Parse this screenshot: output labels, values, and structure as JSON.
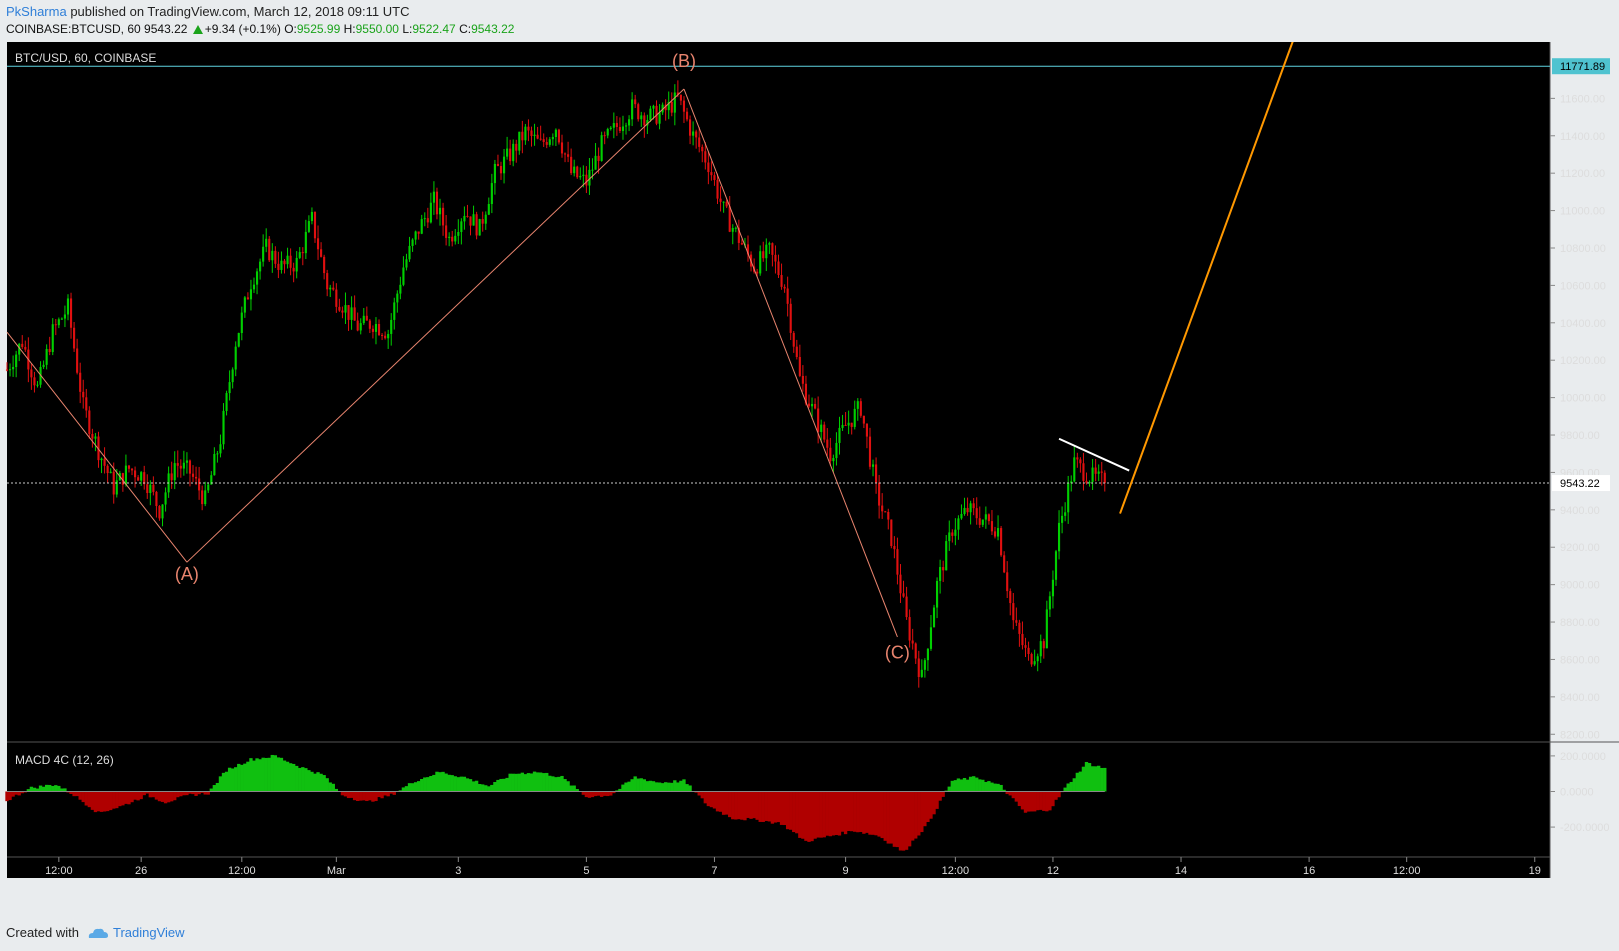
{
  "header": {
    "author": "PkSharma",
    "published_text": " published on TradingView.com, March 12, 2018 09:11 UTC",
    "symbol": "COINBASE:BTCUSD, 60",
    "last": "9543.22",
    "change": "+9.34 (+0.1%)",
    "open_label": "O:",
    "open": "9525.99",
    "high_label": "H:",
    "high": "9550.00",
    "low_label": "L:",
    "low": "9522.47",
    "close_label": "C:",
    "close": "9543.22"
  },
  "footer": {
    "created_with": "Created with",
    "brand": "TradingView"
  },
  "colors": {
    "up": "#00d000",
    "down": "#e01010",
    "macd_up": "#10c010",
    "macd_down": "#b00000",
    "wave": "#e8846e",
    "target": "#ff9800",
    "trend": "#ffffff",
    "hline": "#5fd3e0",
    "bg": "#000000"
  },
  "chart_data": {
    "type": "candlestick",
    "title": "BTC/USD, 60, COINBASE",
    "y_ticks": [
      "11600.00",
      "11400.00",
      "11200.00",
      "11000.00",
      "10800.00",
      "10600.00",
      "10400.00",
      "10200.00",
      "10000.00",
      "9800.00",
      "9600.00",
      "9400.00",
      "9200.00",
      "9000.00",
      "8800.00",
      "8600.00",
      "8400.00",
      "8200.00"
    ],
    "ylim": [
      8180,
      11880
    ],
    "current_price_label": "9543.22",
    "hline_price_label": "11771.89",
    "x_ticks": [
      "12:00",
      "26",
      "12:00",
      "Mar",
      "3",
      "5",
      "7",
      "9",
      "12:00",
      "12",
      "14",
      "16",
      "12:00",
      "19"
    ],
    "x_tick_bars": [
      17,
      44,
      77,
      108,
      148,
      190,
      232,
      275,
      311,
      343,
      385,
      427,
      459,
      501
    ],
    "bars_in_view": 506,
    "close_path": [
      [
        0,
        10150
      ],
      [
        5,
        10300
      ],
      [
        10,
        10050
      ],
      [
        15,
        10350
      ],
      [
        20,
        10480
      ],
      [
        25,
        9950
      ],
      [
        30,
        9720
      ],
      [
        35,
        9520
      ],
      [
        40,
        9620
      ],
      [
        45,
        9580
      ],
      [
        50,
        9400
      ],
      [
        55,
        9650
      ],
      [
        60,
        9600
      ],
      [
        65,
        9450
      ],
      [
        70,
        9780
      ],
      [
        75,
        10300
      ],
      [
        80,
        10620
      ],
      [
        85,
        10800
      ],
      [
        90,
        10700
      ],
      [
        95,
        10720
      ],
      [
        100,
        10950
      ],
      [
        105,
        10600
      ],
      [
        110,
        10500
      ],
      [
        115,
        10380
      ],
      [
        120,
        10400
      ],
      [
        125,
        10350
      ],
      [
        130,
        10700
      ],
      [
        135,
        10900
      ],
      [
        140,
        11050
      ],
      [
        145,
        10850
      ],
      [
        150,
        11000
      ],
      [
        155,
        10900
      ],
      [
        160,
        11200
      ],
      [
        165,
        11300
      ],
      [
        170,
        11420
      ],
      [
        175,
        11350
      ],
      [
        180,
        11450
      ],
      [
        185,
        11200
      ],
      [
        190,
        11150
      ],
      [
        195,
        11350
      ],
      [
        200,
        11450
      ],
      [
        205,
        11550
      ],
      [
        210,
        11500
      ],
      [
        215,
        11520
      ],
      [
        220,
        11600
      ],
      [
        225,
        11400
      ],
      [
        230,
        11250
      ],
      [
        235,
        11000
      ],
      [
        240,
        10850
      ],
      [
        245,
        10700
      ],
      [
        250,
        10780
      ],
      [
        255,
        10600
      ],
      [
        260,
        10100
      ],
      [
        265,
        9900
      ],
      [
        270,
        9700
      ],
      [
        275,
        9850
      ],
      [
        280,
        9950
      ],
      [
        285,
        9500
      ],
      [
        290,
        9250
      ],
      [
        295,
        8800
      ],
      [
        300,
        8500
      ],
      [
        305,
        9000
      ],
      [
        310,
        9300
      ],
      [
        315,
        9400
      ],
      [
        320,
        9350
      ],
      [
        325,
        9300
      ],
      [
        330,
        8800
      ],
      [
        335,
        8600
      ],
      [
        340,
        8700
      ],
      [
        345,
        9300
      ],
      [
        350,
        9650
      ],
      [
        355,
        9580
      ],
      [
        360,
        9543.22
      ]
    ],
    "wave_labels": [
      {
        "label": "(A)",
        "bar": 59,
        "price": 9120
      },
      {
        "label": "(B)",
        "bar": 222,
        "price": 11650
      },
      {
        "label": "(C)",
        "bar": 292,
        "price": 8700
      }
    ],
    "wave_lines": [
      [
        [
          0,
          10350
        ],
        [
          59,
          9120
        ]
      ],
      [
        [
          59,
          9120
        ],
        [
          222,
          11650
        ]
      ],
      [
        [
          222,
          11650
        ],
        [
          292,
          8720
        ]
      ]
    ],
    "trendline": [
      [
        345,
        9780
      ],
      [
        368,
        9610
      ]
    ],
    "target_line": [
      [
        365,
        9380
      ],
      [
        422,
        11920
      ]
    ],
    "macd": {
      "label": "MACD 4C (12, 26)",
      "y_ticks": [
        "200.0000",
        "0.0000",
        "-200.0000"
      ],
      "ylim": [
        -340,
        250
      ],
      "path": [
        [
          0,
          -50
        ],
        [
          8,
          20
        ],
        [
          16,
          40
        ],
        [
          22,
          -20
        ],
        [
          30,
          -120
        ],
        [
          38,
          -80
        ],
        [
          46,
          -20
        ],
        [
          52,
          -60
        ],
        [
          60,
          -20
        ],
        [
          66,
          -10
        ],
        [
          72,
          120
        ],
        [
          80,
          180
        ],
        [
          88,
          200
        ],
        [
          96,
          140
        ],
        [
          104,
          90
        ],
        [
          110,
          -20
        ],
        [
          118,
          -60
        ],
        [
          126,
          -20
        ],
        [
          134,
          60
        ],
        [
          142,
          110
        ],
        [
          150,
          80
        ],
        [
          158,
          30
        ],
        [
          166,
          100
        ],
        [
          174,
          110
        ],
        [
          182,
          80
        ],
        [
          190,
          -30
        ],
        [
          198,
          -20
        ],
        [
          206,
          80
        ],
        [
          214,
          50
        ],
        [
          222,
          60
        ],
        [
          230,
          -80
        ],
        [
          238,
          -150
        ],
        [
          246,
          -160
        ],
        [
          254,
          -180
        ],
        [
          262,
          -280
        ],
        [
          270,
          -250
        ],
        [
          278,
          -220
        ],
        [
          286,
          -250
        ],
        [
          294,
          -340
        ],
        [
          302,
          -180
        ],
        [
          310,
          60
        ],
        [
          318,
          80
        ],
        [
          326,
          30
        ],
        [
          334,
          -120
        ],
        [
          342,
          -100
        ],
        [
          348,
          40
        ],
        [
          354,
          160
        ],
        [
          360,
          130
        ]
      ]
    }
  }
}
